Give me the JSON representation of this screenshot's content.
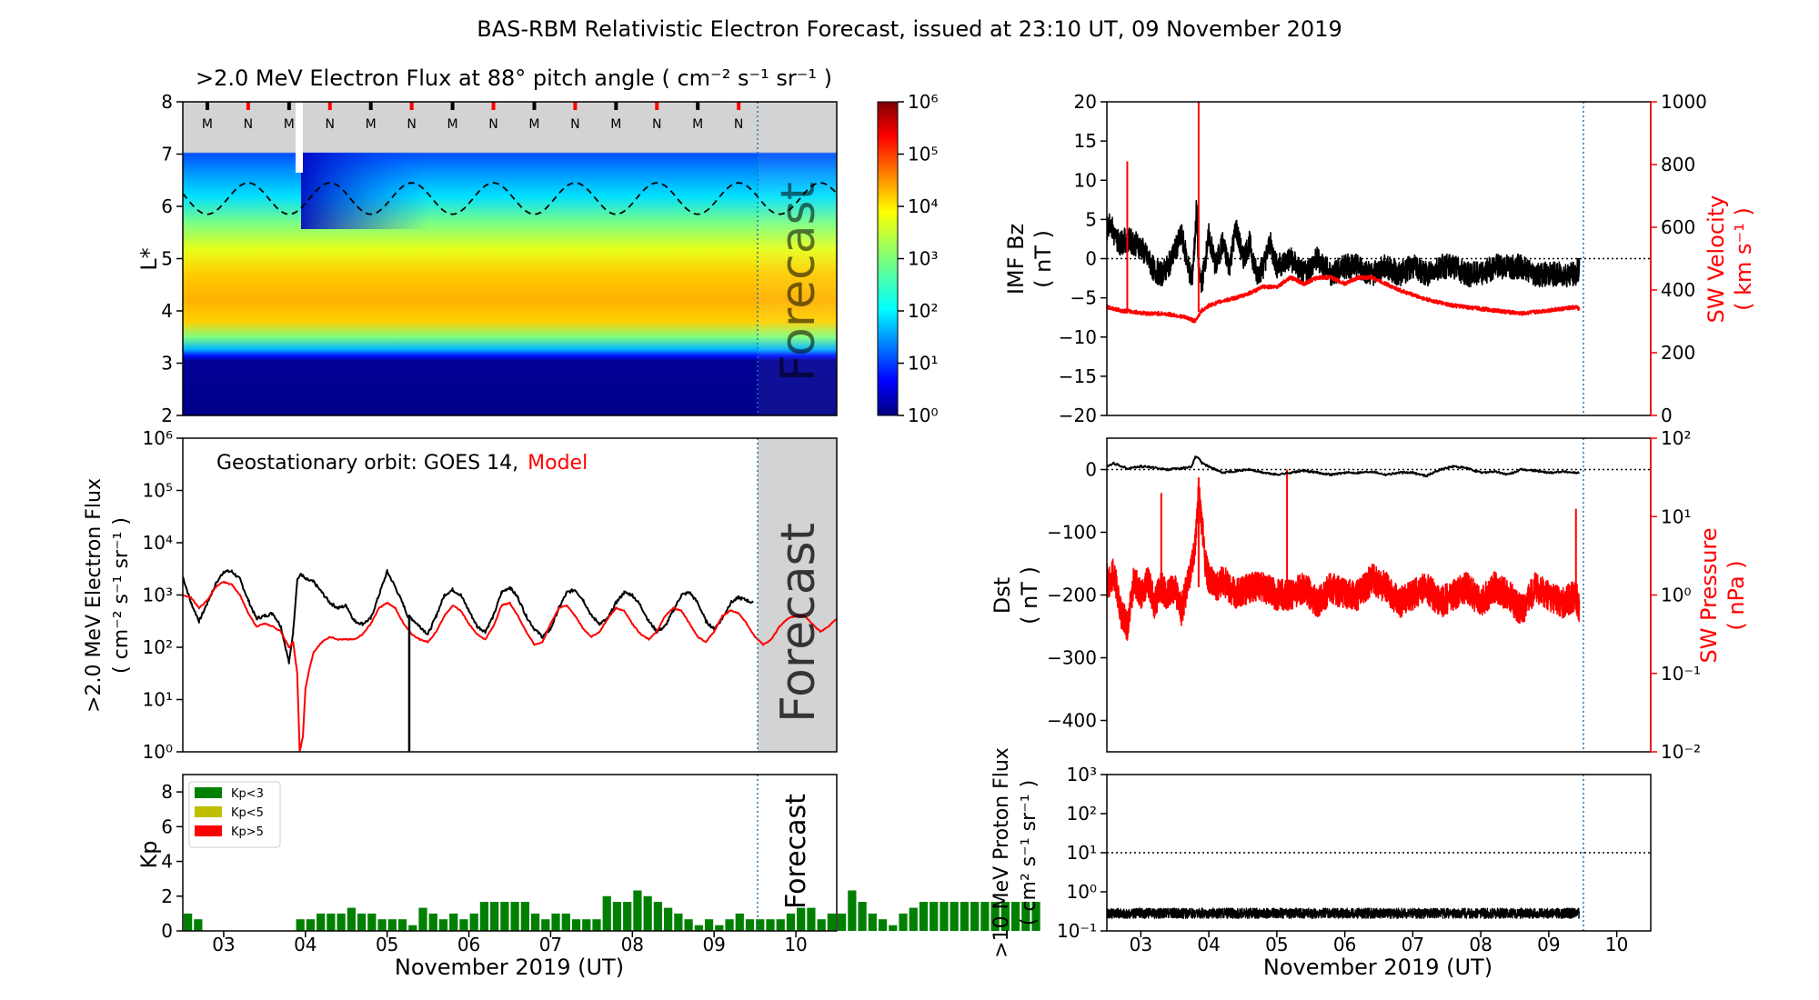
{
  "figure_title": "BAS-RBM Relativistic Electron Forecast, issued at 23:10 UT, 09 November 2019",
  "xlabel": "November 2019 (UT)",
  "x_ticks": [
    "03",
    "04",
    "05",
    "06",
    "07",
    "08",
    "09",
    "10"
  ],
  "colors": {
    "black": "#000000",
    "red": "#ff0000",
    "green": "#008000",
    "olive": "#bfbf00",
    "grey": "#d3d3d3",
    "forecast_line": "#1f77b4"
  },
  "chart_data": [
    {
      "id": "flux_heatmap",
      "type": "heatmap",
      "title": ">2.0 MeV Electron Flux at 88° pitch angle ( cm⁻² s⁻¹ sr⁻¹ )",
      "ylabel": "L*",
      "xlim": [
        2.5,
        10.5
      ],
      "ylim": [
        2,
        8
      ],
      "y_ticks": [
        "2",
        "3",
        "4",
        "5",
        "6",
        "7",
        "8"
      ],
      "forecast_start": 9.47,
      "forecast_text": "Forecast",
      "colorbar_ticks": [
        "10⁰",
        "10¹",
        "10²",
        "10³",
        "10⁴",
        "10⁵",
        "10⁶"
      ],
      "mlt_markers": [
        {
          "x": 2.8,
          "label": "M"
        },
        {
          "x": 3.3,
          "label": "N"
        },
        {
          "x": 3.8,
          "label": "M"
        },
        {
          "x": 4.3,
          "label": "N"
        },
        {
          "x": 4.8,
          "label": "M"
        },
        {
          "x": 5.3,
          "label": "N"
        },
        {
          "x": 5.8,
          "label": "M"
        },
        {
          "x": 6.3,
          "label": "N"
        },
        {
          "x": 6.8,
          "label": "M"
        },
        {
          "x": 7.3,
          "label": "N"
        },
        {
          "x": 7.8,
          "label": "M"
        },
        {
          "x": 8.3,
          "label": "N"
        },
        {
          "x": 8.8,
          "label": "M"
        },
        {
          "x": 9.3,
          "label": "N"
        }
      ],
      "geo_orbit_L": {
        "mean": 6.15,
        "amplitude": 0.3,
        "period_days": 1
      }
    },
    {
      "id": "geo_flux",
      "type": "line",
      "annotation": "Geostationary orbit:   GOES 14,",
      "annotation_model": "Model",
      "ylabel_line1": ">2.0 MeV Electron Flux",
      "ylabel_line2": "( cm⁻² s⁻¹ sr⁻¹ )",
      "xlim": [
        2.5,
        10.5
      ],
      "ylim_log": [
        0,
        6
      ],
      "y_ticks": [
        "10⁰",
        "10¹",
        "10²",
        "10³",
        "10⁴",
        "10⁵",
        "10⁶"
      ],
      "forecast_text": "Forecast",
      "series": [
        {
          "name": "GOES 14",
          "color": "#000000",
          "x": [
            2.5,
            2.6,
            2.7,
            2.8,
            2.9,
            3.0,
            3.1,
            3.2,
            3.3,
            3.4,
            3.5,
            3.6,
            3.7,
            3.8,
            3.85,
            3.9,
            3.95,
            4.0,
            4.1,
            4.2,
            4.3,
            4.4,
            4.5,
            4.6,
            4.7,
            4.8,
            4.9,
            5.0,
            5.1,
            5.2,
            5.25,
            5.3,
            5.4,
            5.5,
            5.6,
            5.7,
            5.8,
            5.9,
            6.0,
            6.1,
            6.2,
            6.3,
            6.4,
            6.5,
            6.6,
            6.7,
            6.8,
            6.9,
            7.0,
            7.1,
            7.2,
            7.3,
            7.4,
            7.5,
            7.6,
            7.7,
            7.8,
            7.9,
            8.0,
            8.1,
            8.2,
            8.3,
            8.4,
            8.5,
            8.6,
            8.7,
            8.8,
            8.9,
            9.0,
            9.1,
            9.2,
            9.3,
            9.4,
            9.47
          ],
          "logy": [
            3.35,
            2.85,
            2.5,
            2.85,
            3.2,
            3.45,
            3.45,
            3.3,
            2.9,
            2.55,
            2.6,
            2.65,
            2.4,
            1.7,
            2.3,
            3.3,
            3.4,
            3.3,
            3.25,
            3.05,
            2.85,
            2.75,
            2.8,
            2.5,
            2.45,
            2.55,
            3.0,
            3.45,
            3.15,
            2.8,
            2.6,
            2.55,
            2.4,
            2.25,
            2.6,
            3.0,
            3.1,
            3.0,
            2.7,
            2.4,
            2.3,
            2.6,
            3.05,
            3.15,
            2.95,
            2.6,
            2.35,
            2.2,
            2.35,
            2.75,
            3.05,
            3.1,
            2.9,
            2.6,
            2.45,
            2.55,
            2.85,
            3.05,
            3.0,
            2.8,
            2.5,
            2.3,
            2.4,
            2.7,
            3.0,
            3.05,
            2.85,
            2.5,
            2.35,
            2.55,
            2.85,
            2.95,
            2.9,
            2.85
          ]
        },
        {
          "name": "Model",
          "color": "#ff0000",
          "x": [
            2.5,
            2.6,
            2.7,
            2.8,
            2.9,
            3.0,
            3.1,
            3.2,
            3.3,
            3.4,
            3.5,
            3.6,
            3.7,
            3.8,
            3.85,
            3.9,
            3.93,
            3.97,
            4.0,
            4.05,
            4.1,
            4.2,
            4.3,
            4.4,
            4.5,
            4.6,
            4.7,
            4.8,
            4.9,
            5.0,
            5.1,
            5.2,
            5.3,
            5.4,
            5.5,
            5.6,
            5.7,
            5.8,
            5.9,
            6.0,
            6.1,
            6.2,
            6.3,
            6.4,
            6.5,
            6.6,
            6.7,
            6.8,
            6.9,
            7.0,
            7.1,
            7.2,
            7.3,
            7.4,
            7.5,
            7.6,
            7.7,
            7.8,
            7.9,
            8.0,
            8.1,
            8.2,
            8.3,
            8.4,
            8.5,
            8.6,
            8.7,
            8.8,
            8.9,
            9.0,
            9.1,
            9.2,
            9.3,
            9.4,
            9.5,
            9.6,
            9.7,
            9.8,
            9.9,
            10.0,
            10.1,
            10.2,
            10.3,
            10.4,
            10.5
          ],
          "logy": [
            3.0,
            2.95,
            2.75,
            2.9,
            3.15,
            3.25,
            3.2,
            3.0,
            2.65,
            2.4,
            2.45,
            2.4,
            2.3,
            2.0,
            2.1,
            1.5,
            0.0,
            0.3,
            1.2,
            1.6,
            1.9,
            2.1,
            2.2,
            2.15,
            2.15,
            2.15,
            2.25,
            2.45,
            2.75,
            2.85,
            2.75,
            2.45,
            2.25,
            2.15,
            2.1,
            2.3,
            2.6,
            2.8,
            2.7,
            2.45,
            2.25,
            2.15,
            2.4,
            2.8,
            2.85,
            2.6,
            2.3,
            2.05,
            2.1,
            2.45,
            2.75,
            2.8,
            2.6,
            2.35,
            2.2,
            2.3,
            2.55,
            2.75,
            2.7,
            2.45,
            2.25,
            2.15,
            2.3,
            2.6,
            2.75,
            2.7,
            2.45,
            2.2,
            2.1,
            2.3,
            2.6,
            2.7,
            2.65,
            2.45,
            2.2,
            2.05,
            2.15,
            2.4,
            2.55,
            2.6,
            2.6,
            2.45,
            2.3,
            2.4,
            2.55
          ]
        }
      ]
    },
    {
      "id": "kp",
      "type": "bar",
      "ylabel": "Kp",
      "xlim": [
        2.5,
        10.5
      ],
      "ylim": [
        0,
        9
      ],
      "y_ticks": [
        "0",
        "2",
        "4",
        "6",
        "8"
      ],
      "forecast_text": "Forecast",
      "legend": [
        {
          "label": "Kp<3",
          "color": "#008000"
        },
        {
          "label": "Kp<5",
          "color": "#bfbf00"
        },
        {
          "label": "Kp>5",
          "color": "#ff0000"
        }
      ],
      "bar_width_days": 0.125,
      "start_x": 2.5,
      "values": [
        1,
        0.67,
        0,
        0,
        0,
        0,
        0,
        0,
        0,
        0,
        0,
        0.67,
        0.67,
        1,
        1,
        1,
        1.33,
        1,
        1,
        0.67,
        0.67,
        0.67,
        0.33,
        1.33,
        1,
        0.67,
        1,
        0.67,
        1,
        1.67,
        1.67,
        1.67,
        1.67,
        1.67,
        1,
        0.67,
        1,
        1,
        0.67,
        0.67,
        0.67,
        2,
        1.67,
        1.67,
        2.33,
        2,
        1.67,
        1.33,
        1,
        0.67,
        0.33,
        0.67,
        0.33,
        0.67,
        1,
        0.67,
        0.67,
        0.67,
        0.67,
        1,
        1.33,
        1.33,
        0.67,
        1,
        1,
        2.33,
        1.67,
        1,
        0.67,
        0.33,
        1,
        1.33,
        1.67,
        1.67,
        1.67,
        1.67,
        1.67,
        1.67,
        1.67,
        1.67,
        1.67,
        1.67,
        1.67,
        1.67
      ]
    },
    {
      "id": "imf_vsw",
      "type": "line",
      "ylabel_left_line1": "IMF Bz",
      "ylabel_left_line2": "( nT )",
      "ylabel_right_line1": "SW Velocity",
      "ylabel_right_line2": "( km s⁻¹ )",
      "xlim": [
        2.5,
        10.5
      ],
      "ylim_left": [
        -20,
        20
      ],
      "ylim_right": [
        0,
        1000
      ],
      "y_ticks_left": [
        "−20",
        "−15",
        "−10",
        "−5",
        "0",
        "5",
        "10",
        "15",
        "20"
      ],
      "y_ticks_right": [
        "0",
        "200",
        "400",
        "600",
        "800",
        "1000"
      ],
      "series": [
        {
          "name": "IMF Bz",
          "color": "#000000",
          "x": [
            2.5,
            2.55,
            2.6,
            2.7,
            2.8,
            2.9,
            3.0,
            3.1,
            3.2,
            3.3,
            3.4,
            3.5,
            3.6,
            3.7,
            3.75,
            3.8,
            3.82,
            3.85,
            3.9,
            4.0,
            4.1,
            4.2,
            4.3,
            4.4,
            4.5,
            4.6,
            4.7,
            4.8,
            4.9,
            5.0,
            5.2,
            5.4,
            5.6,
            5.8,
            6.0,
            6.2,
            6.4,
            6.6,
            6.8,
            7.0,
            7.2,
            7.4,
            7.6,
            7.8,
            8.0,
            8.2,
            8.4,
            8.6,
            8.8,
            9.0,
            9.2,
            9.4,
            9.45
          ],
          "y": [
            3.5,
            5,
            3,
            2,
            2.5,
            2,
            1.5,
            0,
            -1.5,
            -2,
            -1,
            1,
            3,
            -1,
            -3,
            3,
            7,
            -2,
            -3,
            3,
            -1,
            2,
            -1,
            4,
            0,
            2,
            -2,
            -1,
            2,
            -1,
            0,
            -2,
            0,
            -2,
            -1,
            -1,
            -2,
            -1,
            -2,
            -1,
            -2,
            -1,
            -1,
            -2,
            -2,
            -1,
            -1,
            -1,
            -2,
            -2,
            -2,
            -2,
            -1
          ]
        },
        {
          "name": "SW Velocity",
          "color": "#ff0000",
          "x": [
            2.5,
            2.7,
            2.9,
            3.1,
            3.3,
            3.5,
            3.7,
            3.8,
            3.85,
            3.9,
            4.0,
            4.2,
            4.4,
            4.6,
            4.8,
            5.0,
            5.2,
            5.4,
            5.6,
            5.8,
            6.0,
            6.2,
            6.4,
            6.6,
            6.8,
            7.0,
            7.2,
            7.4,
            7.6,
            7.8,
            8.0,
            8.2,
            8.4,
            8.6,
            8.8,
            9.0,
            9.2,
            9.4,
            9.45
          ],
          "y": [
            345,
            335,
            330,
            325,
            325,
            320,
            310,
            300,
            320,
            335,
            350,
            365,
            375,
            390,
            410,
            410,
            440,
            420,
            440,
            440,
            420,
            440,
            440,
            420,
            400,
            385,
            370,
            360,
            350,
            345,
            340,
            335,
            330,
            325,
            330,
            335,
            340,
            345,
            340
          ],
          "spikes": [
            {
              "x": 2.8,
              "y": 810
            },
            {
              "x": 3.85,
              "y": 1000
            }
          ]
        }
      ]
    },
    {
      "id": "dst_psw",
      "type": "line",
      "ylabel_left_line1": "Dst",
      "ylabel_left_line2": "( nT )",
      "ylabel_right_line1": "SW Pressure",
      "ylabel_right_line2": "( nPa )",
      "xlim": [
        2.5,
        10.5
      ],
      "ylim_left": [
        -450,
        50
      ],
      "ylim_right_log": [
        -2,
        2
      ],
      "y_ticks_left": [
        "−400",
        "−300",
        "−200",
        "−100",
        "0"
      ],
      "y_ticks_right": [
        "10⁻²",
        "10⁻¹",
        "10⁰",
        "10¹",
        "10²"
      ],
      "series": [
        {
          "name": "Dst",
          "color": "#000000",
          "x": [
            2.5,
            2.6,
            2.8,
            3.0,
            3.2,
            3.4,
            3.6,
            3.75,
            3.8,
            3.85,
            3.9,
            4.0,
            4.1,
            4.2,
            4.4,
            4.6,
            4.8,
            5.0,
            5.2,
            5.4,
            5.6,
            5.8,
            6.0,
            6.2,
            6.4,
            6.6,
            6.8,
            7.0,
            7.2,
            7.4,
            7.6,
            7.8,
            8.0,
            8.2,
            8.4,
            8.6,
            8.8,
            9.0,
            9.2,
            9.4,
            9.45
          ],
          "y": [
            5,
            10,
            2,
            5,
            3,
            0,
            2,
            5,
            20,
            18,
            10,
            5,
            0,
            -5,
            -2,
            0,
            -5,
            -8,
            -5,
            -2,
            -5,
            -8,
            -5,
            -5,
            -3,
            -8,
            -5,
            -5,
            -10,
            0,
            5,
            2,
            -5,
            -3,
            -8,
            0,
            -2,
            -5,
            -3,
            -5,
            -5
          ]
        },
        {
          "name": "SW Pressure",
          "color": "#ff0000",
          "x": [
            2.5,
            2.6,
            2.7,
            2.8,
            2.9,
            3.0,
            3.1,
            3.2,
            3.3,
            3.4,
            3.5,
            3.6,
            3.7,
            3.8,
            3.85,
            3.9,
            3.95,
            4.0,
            4.1,
            4.2,
            4.4,
            4.6,
            4.8,
            5.0,
            5.2,
            5.4,
            5.6,
            5.8,
            6.0,
            6.2,
            6.4,
            6.6,
            6.8,
            7.0,
            7.2,
            7.4,
            7.6,
            7.8,
            8.0,
            8.2,
            8.4,
            8.6,
            8.8,
            9.0,
            9.2,
            9.4,
            9.45
          ],
          "logy": [
            0.1,
            0.3,
            -0.2,
            -0.4,
            0.2,
            0.0,
            0.2,
            -0.1,
            0.1,
            0.0,
            0.1,
            -0.2,
            0.2,
            0.6,
            1.3,
            0.9,
            0.4,
            0.2,
            0.1,
            0.2,
            0.0,
            0.1,
            0.1,
            0.0,
            0.0,
            0.1,
            -0.1,
            0.1,
            0.0,
            0.0,
            0.2,
            0.1,
            -0.1,
            0.0,
            0.1,
            -0.1,
            0.0,
            0.1,
            -0.1,
            0.1,
            0.0,
            -0.2,
            0.1,
            0.0,
            -0.1,
            0.0,
            -0.2
          ],
          "spikes": [
            {
              "x": 2.5,
              "logy": 0.4
            },
            {
              "x": 3.3,
              "logy": 1.3
            },
            {
              "x": 3.85,
              "logy": 1.5
            },
            {
              "x": 5.15,
              "logy": 1.6
            },
            {
              "x": 9.4,
              "logy": 1.1
            }
          ]
        }
      ]
    },
    {
      "id": "proton_flux",
      "type": "line",
      "ylabel_line1": ">10 MeV Proton Flux",
      "ylabel_line2": "( cm² s⁻¹ sr⁻¹ )",
      "xlim": [
        2.5,
        10.5
      ],
      "ylim_log": [
        -1,
        3
      ],
      "y_ticks": [
        "10⁻¹",
        "10⁰",
        "10¹",
        "10²",
        "10³"
      ],
      "threshold": 10,
      "series": [
        {
          "name": ">10 MeV Proton Flux",
          "color": "#000000",
          "x_start": 2.5,
          "x_end": 9.45,
          "logy_mean": -0.55,
          "logy_jitter": 0.13
        }
      ]
    }
  ]
}
